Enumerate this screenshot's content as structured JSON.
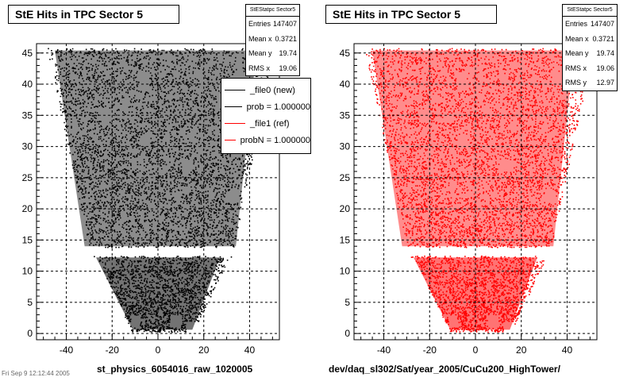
{
  "chart_data": [
    {
      "type": "scatter",
      "title": "StE Hits in TPC Sector 5",
      "xlabel": "st_physics_6054016_raw_1020005",
      "ylabel": "",
      "xlim": [
        -53,
        53
      ],
      "ylim": [
        -1,
        46.5
      ],
      "xticks": [
        -40,
        -20,
        0,
        20,
        40
      ],
      "yticks": [
        0,
        5,
        10,
        15,
        20,
        25,
        30,
        35,
        40,
        45
      ],
      "grid": true,
      "color": "#000000",
      "stats": {
        "title": "StEStatpc Sector5",
        "rows": [
          {
            "label": "Entries",
            "value": "147407"
          },
          {
            "label": "Mean x",
            "value": "0.3721"
          },
          {
            "label": "Mean y",
            "value": "19.74"
          },
          {
            "label": "RMS x",
            "value": "19.06"
          }
        ]
      },
      "legend": {
        "placement": "top-right",
        "entries": [
          {
            "label": "_file0 (new)",
            "color": "#000000"
          },
          {
            "label": "prob = 1.000000",
            "color": "#000000"
          },
          {
            "label": "_file1 (ref)",
            "color": "#ff0000"
          },
          {
            "label": "probN = 1.000000",
            "color": "#ff0000"
          }
        ]
      }
    },
    {
      "type": "scatter",
      "title": "StE Hits in TPC Sector 5",
      "xlabel": "dev/daq_sl302/Sat/year_2005/CuCu200_HighTower/",
      "ylabel": "",
      "xlim": [
        -53,
        53
      ],
      "ylim": [
        -1,
        46.5
      ],
      "xticks": [
        -40,
        -20,
        0,
        20,
        40
      ],
      "yticks": [
        0,
        5,
        10,
        15,
        20,
        25,
        30,
        35,
        40,
        45
      ],
      "grid": true,
      "color": "#ff0000",
      "stats": {
        "title": "StEStatpc Sector5",
        "rows": [
          {
            "label": "Entries",
            "value": "147407"
          },
          {
            "label": "Mean x",
            "value": "0.3721"
          },
          {
            "label": "Mean y",
            "value": "19.74"
          },
          {
            "label": "RMS x",
            "value": "19.06"
          },
          {
            "label": "RMS y",
            "value": "12.97"
          }
        ]
      }
    }
  ],
  "footer": {
    "date": "Fri Sep 9 12:12:44 2005"
  }
}
